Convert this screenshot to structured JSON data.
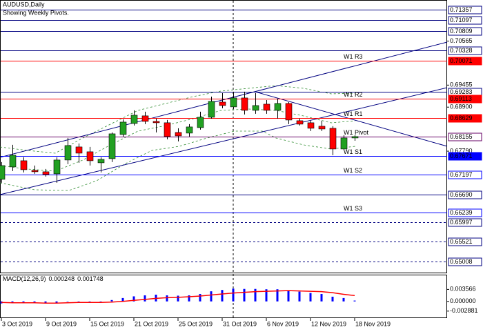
{
  "chart_data": [
    {
      "type": "candlestick",
      "title": "AUDUSD,Daily",
      "subtitle": "Showing Weekly Pivots.",
      "categories": [
        "3 Oct 2019",
        null,
        null,
        null,
        "9 Oct 2019",
        null,
        null,
        null,
        "15 Oct 2019",
        null,
        null,
        null,
        "21 Oct 2019",
        null,
        null,
        null,
        "25 Oct 2019",
        null,
        null,
        null,
        "31 Oct 2019",
        null,
        null,
        null,
        "6 Nov 2019",
        null,
        null,
        null,
        "12 Nov 2019",
        null,
        null,
        null,
        "18 Nov 2019"
      ],
      "open": [
        0.6708,
        0.67393,
        0.67549,
        0.67306,
        0.67271,
        0.67219,
        0.67567,
        0.67897,
        0.67775,
        0.67497,
        0.67601,
        0.6821,
        0.68488,
        0.6868,
        0.68541,
        0.68506,
        0.68262,
        0.68245,
        0.68384,
        0.68645,
        0.69027,
        0.68906,
        0.69132,
        0.68819,
        0.68975,
        0.68819,
        0.68993,
        0.68558,
        0.68506,
        0.68419,
        0.68367,
        0.67845,
        0.68123
      ],
      "high": [
        0.67514,
        0.67949,
        0.67636,
        0.67427,
        0.6734,
        0.67636,
        0.68123,
        0.67984,
        0.67897,
        0.67636,
        0.68262,
        0.68593,
        0.68819,
        0.68784,
        0.6861,
        0.68575,
        0.68367,
        0.68471,
        0.68784,
        0.69166,
        0.69253,
        0.69288,
        0.69288,
        0.69253,
        0.69079,
        0.69114,
        0.69027,
        0.6861,
        0.68558,
        0.68558,
        0.68419,
        0.68193,
        0.68193
      ],
      "low": [
        0.66993,
        0.67288,
        0.67254,
        0.67219,
        0.67149,
        0.66993,
        0.67462,
        0.67497,
        0.67427,
        0.67253,
        0.67514,
        0.68158,
        0.68436,
        0.68471,
        0.68262,
        0.68088,
        0.68036,
        0.68158,
        0.68332,
        0.6861,
        0.68871,
        0.68854,
        0.68714,
        0.68732,
        0.68732,
        0.6861,
        0.68471,
        0.68436,
        0.68297,
        0.68297,
        0.67688,
        0.6781,
        0.68053
      ],
      "close": [
        0.67427,
        0.67688,
        0.67323,
        0.67271,
        0.67201,
        0.67567,
        0.67932,
        0.6774,
        0.67549,
        0.67584,
        0.68227,
        0.68523,
        0.68697,
        0.68541,
        0.68506,
        0.68158,
        0.68175,
        0.68401,
        0.68645,
        0.69045,
        0.6894,
        0.69132,
        0.68819,
        0.6894,
        0.68819,
        0.68993,
        0.68575,
        0.68471,
        0.68367,
        0.68349,
        0.67845,
        0.68123,
        0.68158
      ],
      "up_color": "#22a022",
      "down_color": "#ff0000",
      "wick_color": "#000000",
      "ylim": [
        0.6473,
        0.716
      ],
      "yticks": [
        0.70565,
        0.69455,
        {
          "value": 0.689,
          "label": "0.68900"
        },
        {
          "value": 0.6779,
          "label": "0.67790"
        }
      ],
      "levels": [
        {
          "value": 0.71357,
          "color": "#000080",
          "dashed": false,
          "label_bg": "#ffffff",
          "label_color": "#000000"
        },
        {
          "value": 0.71097,
          "color": "#000080",
          "dashed": false,
          "label_bg": "#ffffff",
          "label_color": "#000000"
        },
        {
          "value": 0.70809,
          "color": "#000080",
          "dashed": false,
          "label_bg": "#ffffff",
          "label_color": "#000000"
        },
        {
          "value": 0.70328,
          "color": "#000080",
          "dashed": false,
          "label_bg": "#ffffff",
          "label_color": "#000000"
        },
        {
          "value": 0.70071,
          "color": "#ff0000",
          "dashed": false,
          "label_bg": "#ff0000",
          "label_color": "#ffffff",
          "name": "W1 R3"
        },
        {
          "value": 0.69283,
          "color": "#000080",
          "dashed": false,
          "label_bg": "#ffffff",
          "label_color": "#000000"
        },
        {
          "value": 0.69113,
          "color": "#ff0000",
          "dashed": false,
          "label_bg": "#ff0000",
          "label_color": "#ffffff",
          "name": "W1 R2"
        },
        {
          "value": 0.68629,
          "color": "#ff0000",
          "dashed": false,
          "label_bg": "#ff0000",
          "label_color": "#ffffff",
          "name": "W1 R1"
        },
        {
          "value": 0.68155,
          "color": "#660066",
          "dashed": false,
          "label_bg": "#ffffff",
          "label_color": "#000000",
          "name": "W1 Pivot"
        },
        {
          "value": 0.67671,
          "color": "#0000ff",
          "dashed": false,
          "label_bg": "#0000ff",
          "label_color": "#ffffff",
          "name": "W1 S1"
        },
        {
          "value": 0.67197,
          "color": "#0000ff",
          "dashed": false,
          "label_bg": "#ffffff",
          "label_color": "#000000",
          "name": "W1 S2"
        },
        {
          "value": 0.6669,
          "label": "0.66690",
          "color": "#000080",
          "dashed": false,
          "label_bg": "#ffffff",
          "label_color": "#000000"
        },
        {
          "value": 0.66239,
          "color": "#0000ff",
          "dashed": false,
          "label_bg": "#ffffff",
          "label_color": "#000000",
          "name": "W1 S3"
        },
        {
          "value": 0.65997,
          "color": "#000080",
          "dashed": true,
          "label_bg": "#ffffff",
          "label_color": "#000000"
        },
        {
          "value": 0.65521,
          "color": "#000080",
          "dashed": true,
          "label_bg": "#ffffff",
          "label_color": "#000000"
        },
        {
          "value": 0.65008,
          "color": "#000080",
          "dashed": true,
          "label_bg": "#ffffff",
          "label_color": "#000000"
        }
      ]
    },
    {
      "type": "macd",
      "title": "MACD(12,26,9)",
      "histogram": {
        "color": "#0000ff",
        "values": [
          -0.0006,
          -0.0005,
          -0.0005,
          -0.0005,
          -0.0006,
          -0.0004,
          -0.0001,
          0,
          -0.0001,
          -0.0001,
          0.0004,
          0.001,
          0.0015,
          0.0018,
          0.002,
          0.0018,
          0.0017,
          0.0018,
          0.0022,
          0.003,
          0.0034,
          0.0038,
          0.0037,
          0.0037,
          0.0036,
          0.0036,
          0.0033,
          0.0029,
          0.0025,
          0.0022,
          0.0014,
          0.001,
          0.000248
        ]
      },
      "signal": {
        "color": "#ff0000",
        "values": [
          -0.0003,
          -0.0004,
          -0.0004,
          -0.0004,
          -0.0005,
          -0.0005,
          -0.0004,
          -0.0003,
          -0.0003,
          -0.0003,
          -0.0002,
          0,
          0.0003,
          0.0006,
          0.0009,
          0.0011,
          0.0012,
          0.0014,
          0.0016,
          0.0019,
          0.0022,
          0.0025,
          0.0027,
          0.0029,
          0.003,
          0.0031,
          0.0032,
          0.0031,
          0.003,
          0.0029,
          0.0026,
          0.0021,
          0.001748
        ]
      },
      "ylim": [
        -0.00476,
        0.00774
      ],
      "yticks": [
        0.003566,
        {
          "value": 0,
          "label": "0.000000"
        },
        -0.002881
      ]
    }
  ]
}
